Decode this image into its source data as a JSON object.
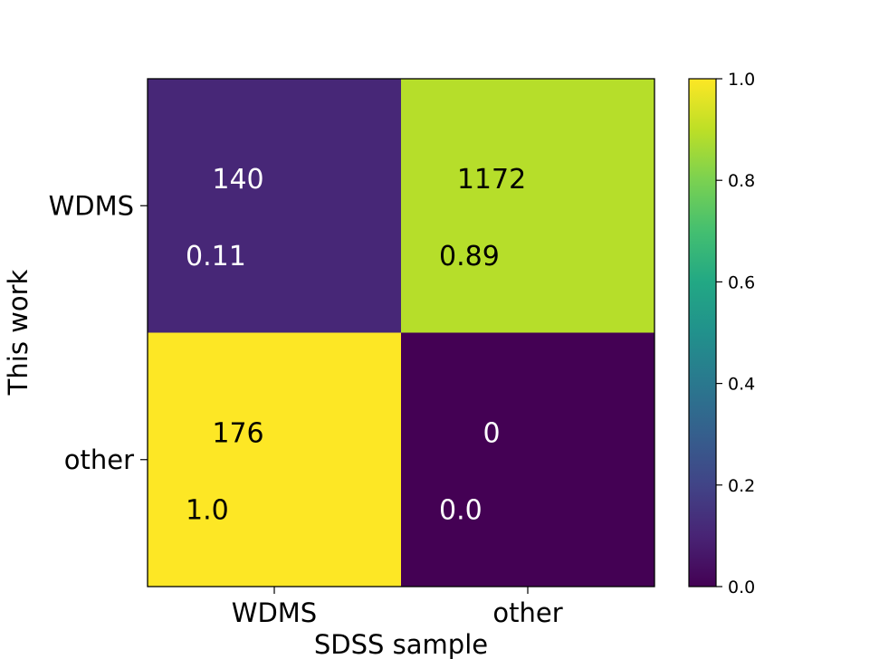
{
  "chart_data": {
    "type": "heatmap",
    "title": "",
    "xlabel": "SDSS sample",
    "ylabel": "This work",
    "x_categories": [
      "WDMS",
      "other"
    ],
    "y_categories": [
      "WDMS",
      "other"
    ],
    "cells": [
      {
        "row": 0,
        "col": 0,
        "count": "140",
        "fraction": "0.11",
        "value": 0.11
      },
      {
        "row": 0,
        "col": 1,
        "count": "1172",
        "fraction": "0.89",
        "value": 0.89
      },
      {
        "row": 1,
        "col": 0,
        "count": "176",
        "fraction": "1.0",
        "value": 1.0
      },
      {
        "row": 1,
        "col": 1,
        "count": "0",
        "fraction": "0.0",
        "value": 0.0
      }
    ],
    "colormap": "viridis",
    "colorbar": {
      "range": [
        0.0,
        1.0
      ],
      "ticks": [
        {
          "value": 0.0,
          "label": "0.0"
        },
        {
          "value": 0.2,
          "label": "0.2"
        },
        {
          "value": 0.4,
          "label": "0.4"
        },
        {
          "value": 0.6,
          "label": "0.6"
        },
        {
          "value": 0.8,
          "label": "0.8"
        },
        {
          "value": 1.0,
          "label": "1.0"
        }
      ]
    }
  }
}
